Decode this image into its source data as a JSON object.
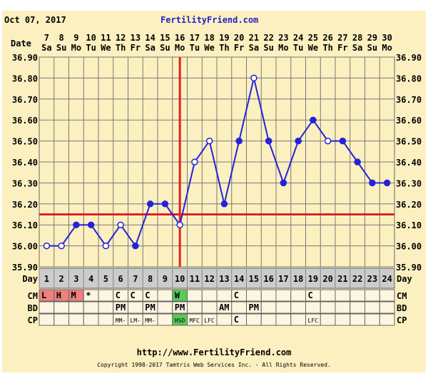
{
  "header": {
    "date": "Oct 07, 2017",
    "site": "FertilityFriend.com"
  },
  "footer": {
    "url": "http://www.FertilityFriend.com",
    "copyright": "Copyright 1998-2017 Tamtris Web Services Inc. - All Rights Reserved."
  },
  "colors": {
    "line": "#2222dd",
    "coverline": "#dd2222",
    "bg": "#fdf0c0",
    "menses": "#f08080",
    "peak": "#55cc55"
  },
  "chart_data": {
    "type": "line",
    "date_label": "Date",
    "day_label": "Day",
    "dates": [
      "7",
      "8",
      "9",
      "10",
      "11",
      "12",
      "13",
      "14",
      "15",
      "16",
      "17",
      "18",
      "19",
      "20",
      "21",
      "22",
      "23",
      "24",
      "25",
      "26",
      "27",
      "28",
      "29",
      "30"
    ],
    "weekdays": [
      "Sa",
      "Su",
      "Mo",
      "Tu",
      "We",
      "Th",
      "Fr",
      "Sa",
      "Su",
      "Mo",
      "Tu",
      "We",
      "Th",
      "Fr",
      "Sa",
      "Su",
      "Mo",
      "Tu",
      "We",
      "Th",
      "Fr",
      "Sa",
      "Su",
      "Mo"
    ],
    "days": [
      1,
      2,
      3,
      4,
      5,
      6,
      7,
      8,
      9,
      10,
      11,
      12,
      13,
      14,
      15,
      16,
      17,
      18,
      19,
      20,
      21,
      22,
      23,
      24
    ],
    "temps": [
      36.0,
      36.0,
      36.1,
      36.1,
      36.0,
      36.1,
      36.0,
      36.2,
      36.2,
      36.1,
      36.4,
      36.5,
      36.2,
      36.5,
      36.8,
      36.5,
      36.3,
      36.5,
      36.6,
      36.5,
      36.5,
      36.4,
      36.3,
      36.3
    ],
    "open_points": [
      1,
      2,
      5,
      6,
      10,
      11,
      12,
      15,
      20
    ],
    "ylim": [
      35.9,
      36.9
    ],
    "yticks": [
      "36.90",
      "36.80",
      "36.70",
      "36.60",
      "36.50",
      "36.40",
      "36.30",
      "36.20",
      "36.10",
      "36.00",
      "35.90"
    ],
    "coverline": 36.15,
    "ovulation_day": 10,
    "rows": [
      {
        "label": "CM",
        "cells": [
          "L",
          "H",
          "M",
          "*",
          "",
          "C",
          "C",
          "C",
          "",
          "W",
          "",
          "",
          "",
          "C",
          "",
          "",
          "",
          "",
          "C",
          "",
          "",
          "",
          "",
          ""
        ],
        "colors": {
          "0": "#f08080",
          "1": "#f08080",
          "2": "#f08080",
          "9": "#55cc55"
        }
      },
      {
        "label": "BD",
        "cells": [
          "",
          "",
          "",
          "",
          "",
          "PM",
          "",
          "PM",
          "",
          "PM",
          "",
          "",
          "AM",
          "",
          "PM",
          "",
          "",
          "",
          "",
          "",
          "",
          "",
          "",
          ""
        ],
        "colors": {}
      },
      {
        "label": "CP",
        "cells": [
          "",
          "",
          "",
          "",
          "",
          "MM-",
          "LM-",
          "MM-",
          "",
          "HSO",
          "MFC",
          "LFC",
          "",
          "C",
          "",
          "",
          "",
          "",
          "LFC",
          "",
          "",
          "",
          "",
          ""
        ],
        "colors": {
          "9": "#55cc55"
        }
      }
    ]
  }
}
